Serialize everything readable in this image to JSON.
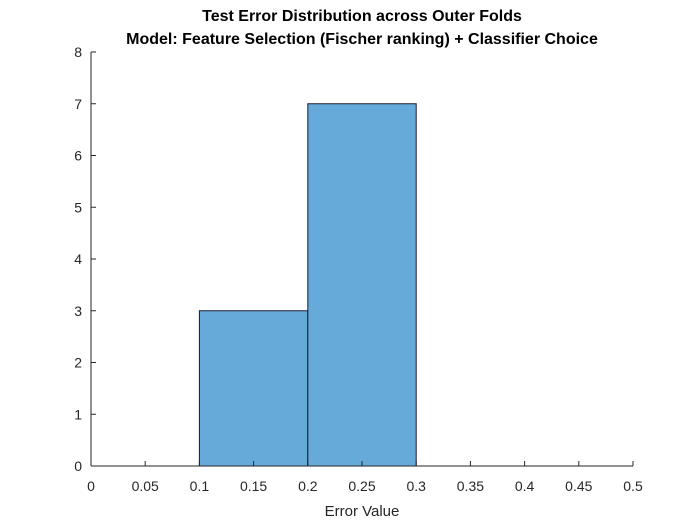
{
  "chart_data": {
    "type": "bar",
    "title": "Test Error Distribution across Outer Folds",
    "subtitle": "Model: Feature Selection (Fischer ranking) + Classifier Choice",
    "xlabel": "Error Value",
    "ylabel": "",
    "bin_edges": [
      0.1,
      0.2,
      0.3
    ],
    "counts": [
      3,
      7
    ],
    "xlim": [
      0,
      0.5
    ],
    "ylim": [
      0,
      8
    ],
    "xticks": [
      "0",
      "0.05",
      "0.1",
      "0.15",
      "0.2",
      "0.25",
      "0.3",
      "0.35",
      "0.4",
      "0.45",
      "0.5"
    ],
    "yticks": [
      "0",
      "1",
      "2",
      "3",
      "4",
      "5",
      "6",
      "7",
      "8"
    ],
    "grid": false,
    "colors": {
      "bar_fill": "#66AADA",
      "bar_edge": "#1A1A33",
      "axis": "#262626"
    }
  }
}
